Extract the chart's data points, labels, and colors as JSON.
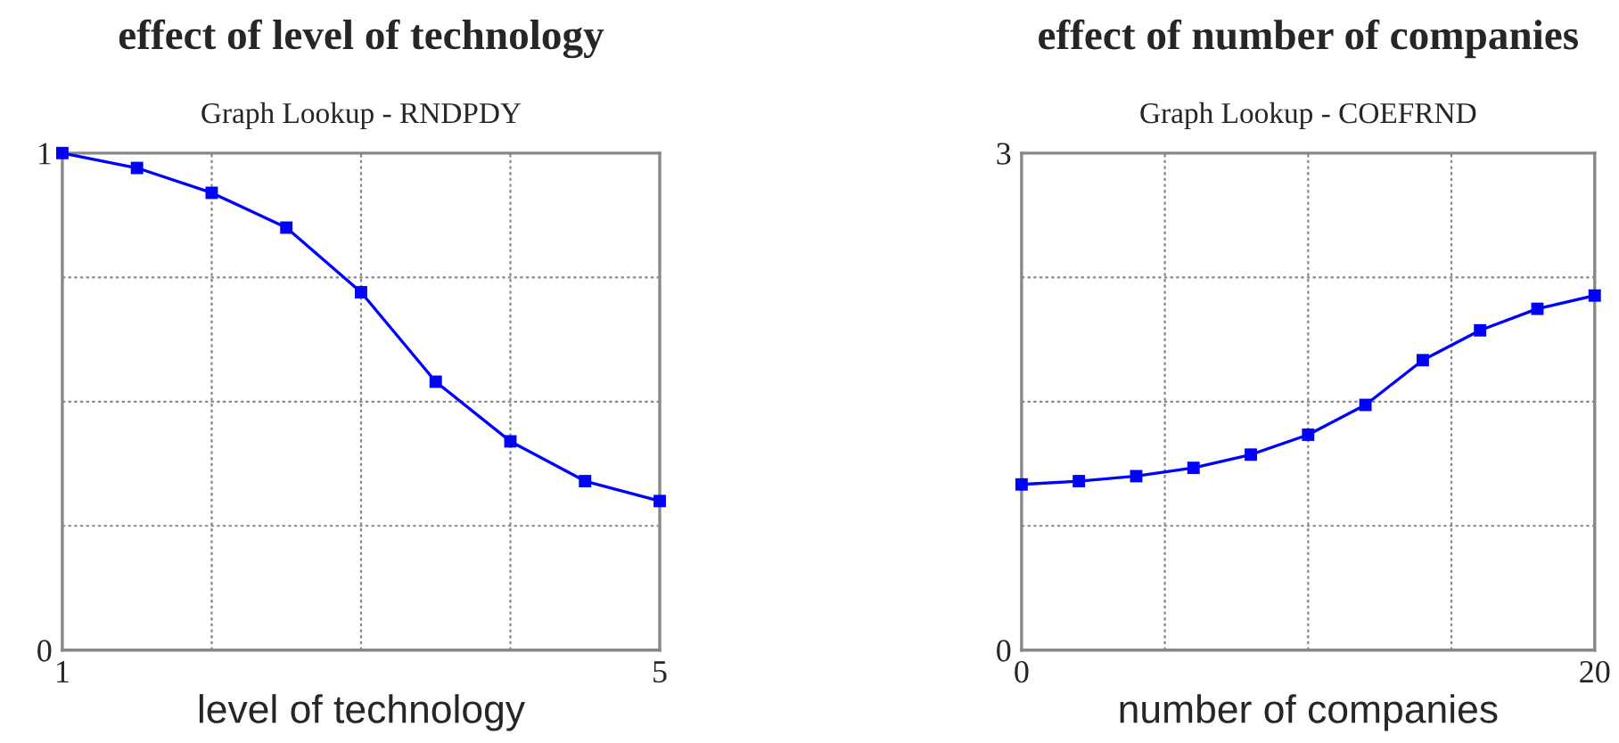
{
  "chart_data": [
    {
      "type": "line",
      "title": "effect of level of technology",
      "subtitle": "Graph Lookup - RNDPDY",
      "xlabel": "level of technology",
      "x": [
        1,
        1.5,
        2,
        2.5,
        3,
        3.5,
        4,
        4.5,
        5
      ],
      "series": [
        {
          "color": "#0000ff",
          "values": [
            1.0,
            0.97,
            0.92,
            0.85,
            0.72,
            0.54,
            0.42,
            0.34,
            0.3
          ]
        }
      ],
      "xlim": [
        1,
        5
      ],
      "ylim": [
        0,
        1
      ],
      "xticks": [
        1,
        {
          "value": 2,
          "label": null
        },
        {
          "value": 3,
          "label": null
        },
        {
          "value": 4,
          "label": null
        },
        5
      ],
      "yticks": [
        0,
        {
          "value": 0.25,
          "label": null
        },
        {
          "value": 0.5,
          "label": null
        },
        {
          "value": 0.75,
          "label": null
        },
        1
      ],
      "grid": true,
      "marker": "square",
      "line_style": "solid"
    },
    {
      "type": "line",
      "title": "effect of number of companies",
      "subtitle": "Graph Lookup - COEFRND",
      "xlabel": "number of companies",
      "x": [
        0,
        2,
        4,
        6,
        8,
        10,
        12,
        14,
        16,
        18,
        20
      ],
      "series": [
        {
          "color": "#0000ff",
          "values": [
            1.0,
            1.02,
            1.05,
            1.1,
            1.18,
            1.3,
            1.48,
            1.75,
            1.93,
            2.06,
            2.14
          ]
        }
      ],
      "xlim": [
        0,
        20
      ],
      "ylim": [
        0,
        3
      ],
      "xticks": [
        0,
        {
          "value": 5,
          "label": null
        },
        {
          "value": 10,
          "label": null
        },
        {
          "value": 15,
          "label": null
        },
        20
      ],
      "yticks": [
        0,
        {
          "value": 0.75,
          "label": null
        },
        {
          "value": 1.5,
          "label": null
        },
        {
          "value": 2.25,
          "label": null
        },
        3
      ],
      "grid": true,
      "marker": "square",
      "line_style": "solid"
    }
  ]
}
